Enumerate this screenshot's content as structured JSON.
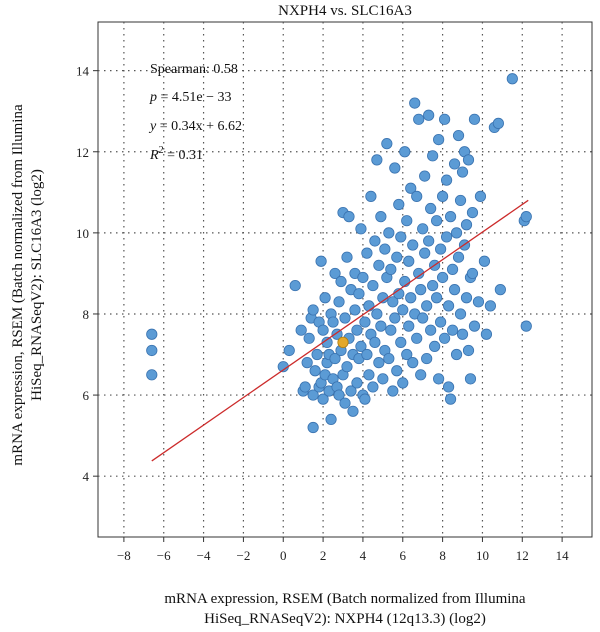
{
  "chart_data": {
    "type": "scatter",
    "title": "NXPH4 vs. SLC16A3",
    "xlabel_line1": "mRNA expression, RSEM (Batch normalized from Illumina",
    "xlabel_line2": "HiSeq_RNASeqV2): NXPH4 (12q13.3) (log2)",
    "ylabel_line1": "mRNA expression, RSEM (Batch normalized from Illumina",
    "ylabel_line2": "HiSeq_RNASeqV2): SLC16A3 (log2)",
    "xlim": [
      -9.3,
      15.5
    ],
    "ylim": [
      2.5,
      15.2
    ],
    "xticks": [
      -8,
      -6,
      -4,
      -2,
      0,
      2,
      4,
      6,
      8,
      10,
      12,
      14
    ],
    "yticks": [
      4,
      6,
      8,
      10,
      12,
      14
    ],
    "grid": true,
    "regression": {
      "slope": 0.34,
      "intercept": 6.62,
      "x_range": [
        -6.6,
        12.3
      ],
      "color": "#cc2b2b"
    },
    "annotations": {
      "spearman": "Spearman: 0.58",
      "p_label": "p",
      "p_value": " = 4.51e − 33",
      "eq_y": "y",
      "eq_rest": " = 0.34x + 6.62",
      "r2_label": "R",
      "r2_sup": "2",
      "r2_value": " = 0.31"
    },
    "point_color": "#5b9bd5",
    "point_stroke": "#3a73b0",
    "highlight_color": "#e3a82b",
    "highlight_point": {
      "x": 3.0,
      "y": 7.3
    },
    "points": [
      [
        -6.6,
        7.5
      ],
      [
        -6.6,
        7.1
      ],
      [
        -6.6,
        6.5
      ],
      [
        0.0,
        6.7
      ],
      [
        0.3,
        7.1
      ],
      [
        0.6,
        8.7
      ],
      [
        0.9,
        7.6
      ],
      [
        1.0,
        6.1
      ],
      [
        1.1,
        6.2
      ],
      [
        1.2,
        6.8
      ],
      [
        1.3,
        7.4
      ],
      [
        1.4,
        7.9
      ],
      [
        1.5,
        6.0
      ],
      [
        1.5,
        5.2
      ],
      [
        1.5,
        8.1
      ],
      [
        1.6,
        6.6
      ],
      [
        1.7,
        7.0
      ],
      [
        1.8,
        6.2
      ],
      [
        1.8,
        7.8
      ],
      [
        1.9,
        6.3
      ],
      [
        1.9,
        9.3
      ],
      [
        2.0,
        5.9
      ],
      [
        2.0,
        7.6
      ],
      [
        2.1,
        6.5
      ],
      [
        2.1,
        8.4
      ],
      [
        2.2,
        7.3
      ],
      [
        2.2,
        6.8
      ],
      [
        2.3,
        6.1
      ],
      [
        2.3,
        7.0
      ],
      [
        2.4,
        8.0
      ],
      [
        2.4,
        5.4
      ],
      [
        2.5,
        6.4
      ],
      [
        2.5,
        7.8
      ],
      [
        2.6,
        6.9
      ],
      [
        2.6,
        9.0
      ],
      [
        2.7,
        6.2
      ],
      [
        2.7,
        7.5
      ],
      [
        2.8,
        8.3
      ],
      [
        2.8,
        6.0
      ],
      [
        2.9,
        7.1
      ],
      [
        2.9,
        8.8
      ],
      [
        3.0,
        6.5
      ],
      [
        3.0,
        10.5
      ],
      [
        3.1,
        5.8
      ],
      [
        3.1,
        7.9
      ],
      [
        3.2,
        6.7
      ],
      [
        3.2,
        9.4
      ],
      [
        3.3,
        7.4
      ],
      [
        3.3,
        10.4
      ],
      [
        3.4,
        6.1
      ],
      [
        3.4,
        8.6
      ],
      [
        3.5,
        7.0
      ],
      [
        3.5,
        5.6
      ],
      [
        3.6,
        8.1
      ],
      [
        3.6,
        9.0
      ],
      [
        3.7,
        6.3
      ],
      [
        3.7,
        7.6
      ],
      [
        3.8,
        8.5
      ],
      [
        3.8,
        6.9
      ],
      [
        3.9,
        10.1
      ],
      [
        3.9,
        7.2
      ],
      [
        4.0,
        6.0
      ],
      [
        4.0,
        8.9
      ],
      [
        4.1,
        7.8
      ],
      [
        4.1,
        5.9
      ],
      [
        4.2,
        9.5
      ],
      [
        4.2,
        7.0
      ],
      [
        4.3,
        8.2
      ],
      [
        4.3,
        6.5
      ],
      [
        4.4,
        10.9
      ],
      [
        4.4,
        7.5
      ],
      [
        4.5,
        8.7
      ],
      [
        4.5,
        6.2
      ],
      [
        4.6,
        9.8
      ],
      [
        4.6,
        7.3
      ],
      [
        4.7,
        8.0
      ],
      [
        4.7,
        11.8
      ],
      [
        4.8,
        6.8
      ],
      [
        4.8,
        9.2
      ],
      [
        4.9,
        7.7
      ],
      [
        4.9,
        10.4
      ],
      [
        5.0,
        6.4
      ],
      [
        5.0,
        8.4
      ],
      [
        5.1,
        9.6
      ],
      [
        5.1,
        7.1
      ],
      [
        5.2,
        12.2
      ],
      [
        5.2,
        8.9
      ],
      [
        5.3,
        6.9
      ],
      [
        5.3,
        10.0
      ],
      [
        5.4,
        7.6
      ],
      [
        5.4,
        9.1
      ],
      [
        5.5,
        8.3
      ],
      [
        5.5,
        6.1
      ],
      [
        5.6,
        11.6
      ],
      [
        5.6,
        7.9
      ],
      [
        5.7,
        9.4
      ],
      [
        5.7,
        6.6
      ],
      [
        5.8,
        10.7
      ],
      [
        5.8,
        8.5
      ],
      [
        5.9,
        7.3
      ],
      [
        5.9,
        9.9
      ],
      [
        6.0,
        8.1
      ],
      [
        6.0,
        6.3
      ],
      [
        6.1,
        12.0
      ],
      [
        6.1,
        8.8
      ],
      [
        6.2,
        7.0
      ],
      [
        6.2,
        10.3
      ],
      [
        6.3,
        9.3
      ],
      [
        6.3,
        7.7
      ],
      [
        6.4,
        8.4
      ],
      [
        6.4,
        11.1
      ],
      [
        6.5,
        6.8
      ],
      [
        6.5,
        9.7
      ],
      [
        6.6,
        13.2
      ],
      [
        6.6,
        8.0
      ],
      [
        6.7,
        10.9
      ],
      [
        6.7,
        7.4
      ],
      [
        6.8,
        9.0
      ],
      [
        6.8,
        12.8
      ],
      [
        6.9,
        8.6
      ],
      [
        6.9,
        6.5
      ],
      [
        7.0,
        10.1
      ],
      [
        7.0,
        7.9
      ],
      [
        7.1,
        9.5
      ],
      [
        7.1,
        11.4
      ],
      [
        7.2,
        8.2
      ],
      [
        7.2,
        6.9
      ],
      [
        7.3,
        12.9
      ],
      [
        7.3,
        9.8
      ],
      [
        7.4,
        7.6
      ],
      [
        7.4,
        10.6
      ],
      [
        7.5,
        8.7
      ],
      [
        7.5,
        11.9
      ],
      [
        7.6,
        9.2
      ],
      [
        7.6,
        7.2
      ],
      [
        7.7,
        10.3
      ],
      [
        7.7,
        8.4
      ],
      [
        7.8,
        6.4
      ],
      [
        7.8,
        12.3
      ],
      [
        7.9,
        9.6
      ],
      [
        7.9,
        7.8
      ],
      [
        8.0,
        10.9
      ],
      [
        8.0,
        8.9
      ],
      [
        8.1,
        12.8
      ],
      [
        8.1,
        7.4
      ],
      [
        8.2,
        9.9
      ],
      [
        8.2,
        11.3
      ],
      [
        8.3,
        8.2
      ],
      [
        8.3,
        6.2
      ],
      [
        8.4,
        10.4
      ],
      [
        8.4,
        5.9
      ],
      [
        8.5,
        9.1
      ],
      [
        8.5,
        7.6
      ],
      [
        8.6,
        11.7
      ],
      [
        8.6,
        8.6
      ],
      [
        8.7,
        10.0
      ],
      [
        8.7,
        7.0
      ],
      [
        8.8,
        12.4
      ],
      [
        8.8,
        9.4
      ],
      [
        8.9,
        8.0
      ],
      [
        8.9,
        10.8
      ],
      [
        9.0,
        11.5
      ],
      [
        9.0,
        7.5
      ],
      [
        9.1,
        9.7
      ],
      [
        9.1,
        12.0
      ],
      [
        9.2,
        8.4
      ],
      [
        9.2,
        10.2
      ],
      [
        9.3,
        7.1
      ],
      [
        9.3,
        11.8
      ],
      [
        9.4,
        8.9
      ],
      [
        9.4,
        6.4
      ],
      [
        9.5,
        10.5
      ],
      [
        9.5,
        9.0
      ],
      [
        9.6,
        12.8
      ],
      [
        9.6,
        7.7
      ],
      [
        9.8,
        8.3
      ],
      [
        9.9,
        10.9
      ],
      [
        10.1,
        9.3
      ],
      [
        10.2,
        7.5
      ],
      [
        10.4,
        8.2
      ],
      [
        10.6,
        12.6
      ],
      [
        10.8,
        12.7
      ],
      [
        10.9,
        8.6
      ],
      [
        11.5,
        13.8
      ],
      [
        12.1,
        10.3
      ],
      [
        12.2,
        10.4
      ],
      [
        12.2,
        7.7
      ]
    ]
  }
}
